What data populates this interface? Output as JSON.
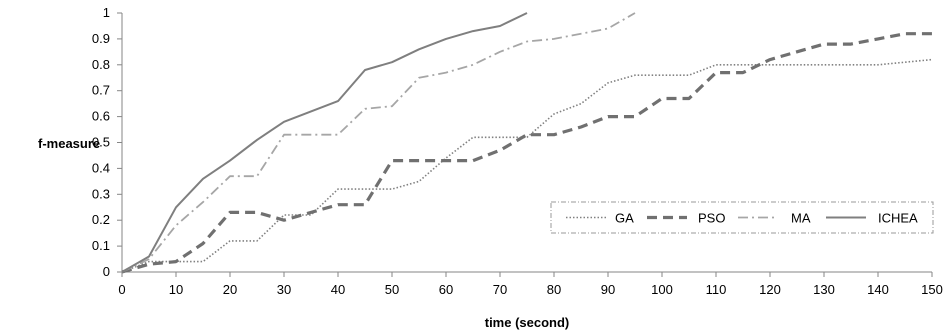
{
  "chart_data": {
    "type": "line",
    "title": "",
    "xlabel": "time (second)",
    "ylabel": "f-measure",
    "xlim": [
      0,
      150
    ],
    "ylim": [
      0,
      1
    ],
    "x_ticks": [
      0,
      10,
      20,
      30,
      40,
      50,
      60,
      70,
      80,
      90,
      100,
      110,
      120,
      130,
      140,
      150
    ],
    "y_ticks": [
      0,
      0.1,
      0.2,
      0.3,
      0.4,
      0.5,
      0.6,
      0.7,
      0.8,
      0.9,
      1
    ],
    "y_tick_labels": [
      "0",
      "0.1",
      "0.2",
      "0.3",
      "0.4",
      "0.5",
      "0.6",
      "0.7",
      "0.8",
      "0.9",
      "1"
    ],
    "grid": false,
    "legend_position": "right-middle",
    "series": [
      {
        "name": "GA",
        "color": "#808080",
        "style": "dotted",
        "points": [
          [
            0,
            0
          ],
          [
            5,
            0.04
          ],
          [
            10,
            0.04
          ],
          [
            15,
            0.04
          ],
          [
            20,
            0.12
          ],
          [
            25,
            0.12
          ],
          [
            30,
            0.22
          ],
          [
            35,
            0.22
          ],
          [
            40,
            0.32
          ],
          [
            45,
            0.32
          ],
          [
            50,
            0.32
          ],
          [
            55,
            0.35
          ],
          [
            60,
            0.44
          ],
          [
            65,
            0.52
          ],
          [
            70,
            0.52
          ],
          [
            75,
            0.52
          ],
          [
            80,
            0.61
          ],
          [
            85,
            0.65
          ],
          [
            90,
            0.73
          ],
          [
            95,
            0.76
          ],
          [
            100,
            0.76
          ],
          [
            105,
            0.76
          ],
          [
            110,
            0.8
          ],
          [
            115,
            0.8
          ],
          [
            120,
            0.8
          ],
          [
            125,
            0.8
          ],
          [
            130,
            0.8
          ],
          [
            135,
            0.8
          ],
          [
            140,
            0.8
          ],
          [
            145,
            0.81
          ],
          [
            150,
            0.82
          ]
        ]
      },
      {
        "name": "PSO",
        "color": "#707070",
        "style": "dashed",
        "points": [
          [
            0,
            0
          ],
          [
            5,
            0.03
          ],
          [
            10,
            0.04
          ],
          [
            15,
            0.11
          ],
          [
            20,
            0.23
          ],
          [
            25,
            0.23
          ],
          [
            30,
            0.2
          ],
          [
            35,
            0.23
          ],
          [
            40,
            0.26
          ],
          [
            45,
            0.26
          ],
          [
            50,
            0.43
          ],
          [
            55,
            0.43
          ],
          [
            60,
            0.43
          ],
          [
            65,
            0.43
          ],
          [
            70,
            0.47
          ],
          [
            75,
            0.53
          ],
          [
            80,
            0.53
          ],
          [
            85,
            0.56
          ],
          [
            90,
            0.6
          ],
          [
            95,
            0.6
          ],
          [
            100,
            0.67
          ],
          [
            105,
            0.67
          ],
          [
            110,
            0.77
          ],
          [
            115,
            0.77
          ],
          [
            120,
            0.82
          ],
          [
            125,
            0.85
          ],
          [
            130,
            0.88
          ],
          [
            135,
            0.88
          ],
          [
            140,
            0.9
          ],
          [
            145,
            0.92
          ],
          [
            150,
            0.92
          ]
        ]
      },
      {
        "name": "MA",
        "color": "#a6a6a6",
        "style": "dashdot",
        "points": [
          [
            0,
            0
          ],
          [
            5,
            0.05
          ],
          [
            10,
            0.18
          ],
          [
            15,
            0.27
          ],
          [
            20,
            0.37
          ],
          [
            25,
            0.37
          ],
          [
            30,
            0.53
          ],
          [
            35,
            0.53
          ],
          [
            40,
            0.53
          ],
          [
            45,
            0.63
          ],
          [
            50,
            0.64
          ],
          [
            55,
            0.75
          ],
          [
            60,
            0.77
          ],
          [
            65,
            0.8
          ],
          [
            70,
            0.85
          ],
          [
            75,
            0.89
          ],
          [
            80,
            0.9
          ],
          [
            85,
            0.92
          ],
          [
            90,
            0.94
          ],
          [
            95,
            1
          ]
        ]
      },
      {
        "name": "ICHEA",
        "color": "#7f7f7f",
        "style": "solid",
        "points": [
          [
            0,
            0
          ],
          [
            5,
            0.06
          ],
          [
            10,
            0.25
          ],
          [
            15,
            0.36
          ],
          [
            20,
            0.43
          ],
          [
            25,
            0.51
          ],
          [
            30,
            0.58
          ],
          [
            35,
            0.62
          ],
          [
            40,
            0.66
          ],
          [
            45,
            0.78
          ],
          [
            50,
            0.81
          ],
          [
            55,
            0.86
          ],
          [
            60,
            0.9
          ],
          [
            65,
            0.93
          ],
          [
            70,
            0.95
          ],
          [
            75,
            1
          ]
        ]
      }
    ]
  }
}
